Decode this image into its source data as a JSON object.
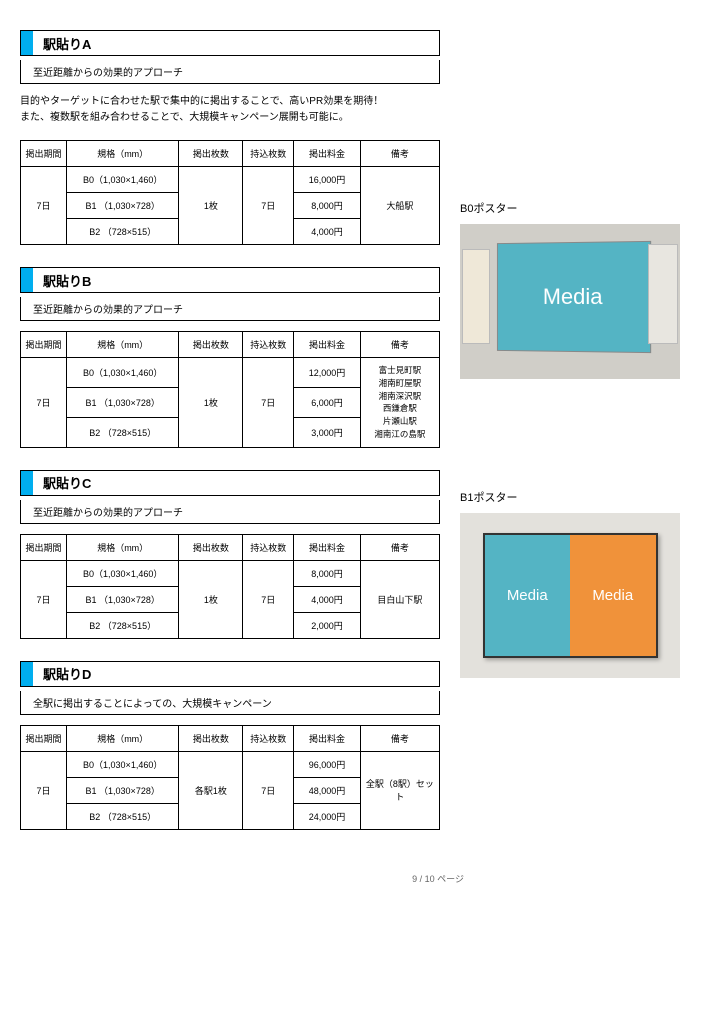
{
  "colors": {
    "accent": "#00aeef",
    "border": "#000000",
    "media_teal": "#54b4c4",
    "media_orange": "#f0923a",
    "bg_gray": "#d0cec8"
  },
  "description_a": "目的やターゲットに合わせた駅で集中的に掲出することで、高いPR効果を期待！\nまた、複数駅を組み合わせることで、大規模キャンペーン展開も可能に。",
  "headers": {
    "period": "掲出期間",
    "spec": "規格（mm）",
    "count": "掲出枚数",
    "bring": "持込枚数",
    "fee": "掲出料金",
    "remark": "備考"
  },
  "common": {
    "period": "7日",
    "count": "1枚",
    "count_d": "各駅1枚",
    "bring": "7日",
    "specs": [
      "B0（1,030×1,460）",
      "B1 （1,030×728）",
      "B2 （728×515）"
    ]
  },
  "sections": [
    {
      "title": "駅貼りA",
      "subtitle": "至近距離からの効果的アプローチ",
      "fees": [
        "16,000円",
        "8,000円",
        "4,000円"
      ],
      "remark": "大船駅"
    },
    {
      "title": "駅貼りB",
      "subtitle": "至近距離からの効果的アプローチ",
      "fees": [
        "12,000円",
        "6,000円",
        "3,000円"
      ],
      "remark": "富士見町駅\n湘南町屋駅\n湘南深沢駅\n西鎌倉駅\n片瀬山駅\n湘南江の島駅"
    },
    {
      "title": "駅貼りC",
      "subtitle": "至近距離からの効果的アプローチ",
      "fees": [
        "8,000円",
        "4,000円",
        "2,000円"
      ],
      "remark": "目白山下駅"
    },
    {
      "title": "駅貼りD",
      "subtitle": "全駅に掲出することによっての、大規模キャンペーン",
      "fees": [
        "96,000円",
        "48,000円",
        "24,000円"
      ],
      "remark": "全駅（8駅）セット"
    }
  ],
  "posters": {
    "b0_label": "B0ポスター",
    "b1_label": "B1ポスター",
    "media_text": "Media"
  },
  "footer": "9 / 10 ページ"
}
